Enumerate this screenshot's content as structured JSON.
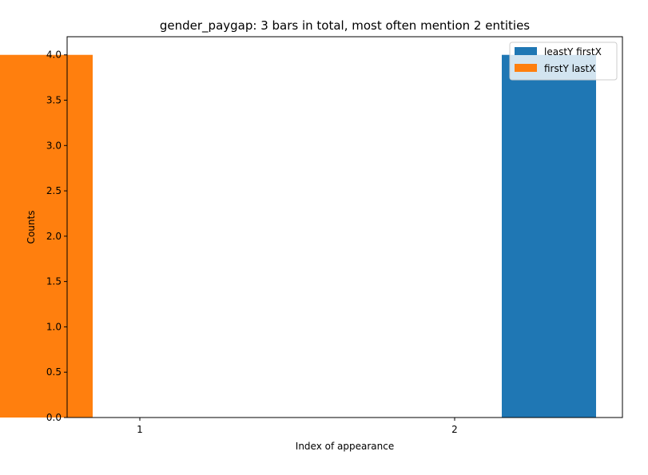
{
  "chart_data": {
    "type": "bar",
    "title": "gender_paygap: 3 bars in total, most often mention  2 entities",
    "xlabel": "Index of appearance",
    "ylabel": "Counts",
    "categories": [
      "1",
      "2"
    ],
    "ylim": [
      0,
      4.2
    ],
    "yticks": [
      "0.0",
      "0.5",
      "1.0",
      "1.5",
      "2.0",
      "2.5",
      "3.0",
      "3.5",
      "4.0"
    ],
    "legend_position": "top-right",
    "grid": false,
    "series": [
      {
        "name": "leastY firstX",
        "color": "#1f77b4",
        "values": [
          0,
          4
        ]
      },
      {
        "name": "firstY lastX",
        "color": "#ff7f0e",
        "values": [
          4,
          0
        ]
      }
    ]
  }
}
